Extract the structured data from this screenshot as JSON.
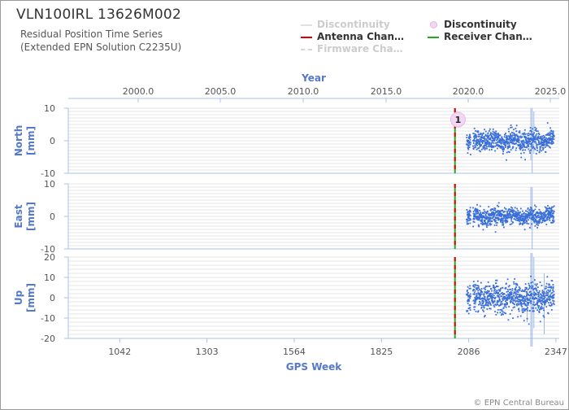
{
  "header": {
    "title": "VLN100IRL 13626M002",
    "subtitle_line1": "Residual Position Time Series",
    "subtitle_line2": "(Extended EPN Solution C2235U)"
  },
  "legend": [
    {
      "label": "Discontinuity",
      "style": "dim-line",
      "color": "#d8d8d8"
    },
    {
      "label": "Discontinuity",
      "style": "bubble",
      "color": "#f0d0f0"
    },
    {
      "label": "Antenna Chan…",
      "style": "line",
      "color": "#dd0000"
    },
    {
      "label": "Receiver Chan…",
      "style": "line",
      "color": "#22aa22"
    },
    {
      "label": "Firmware Cha…",
      "style": "dashed-dim",
      "color": "#cccccc"
    }
  ],
  "footer": "© EPN Central Bureau",
  "colors": {
    "axis_title": "#5577cc",
    "points": "#3a6fd8",
    "axis_line": "#a9c2ea",
    "grid": "#e6e6e6",
    "antenna": "#dd0000",
    "receiver": "#22aa22",
    "discontinuity_bubble": "#f2d6f2"
  },
  "chart_data": {
    "type": "scatter",
    "x_axis_bottom": {
      "title": "GPS Week",
      "tick_labels": [
        "1042",
        "1303",
        "1564",
        "1825",
        "2086",
        "2347"
      ],
      "ticks": [
        1042,
        1303,
        1564,
        1825,
        2086,
        2347
      ],
      "range": [
        888,
        2357
      ]
    },
    "x_axis_top": {
      "title": "Year",
      "tick_labels": [
        "2000.0",
        "2005.0",
        "2010.0",
        "2015.0",
        "2020.0",
        "2025.0"
      ]
    },
    "panels": [
      {
        "name": "north",
        "ylabel": "North",
        "unit": "[mm]",
        "ylim": [
          -10,
          10
        ],
        "ticks": [
          10,
          0,
          -10
        ],
        "tick_labels": [
          "10",
          "0",
          "-10"
        ],
        "noise_sd": 1.6,
        "spikes": [
          {
            "week": 2272,
            "low": -6,
            "high": 10
          },
          {
            "week": 2276,
            "low": -10,
            "high": 10
          },
          {
            "week": 2281,
            "low": -4,
            "high": 9
          }
        ]
      },
      {
        "name": "east",
        "ylabel": "East",
        "unit": "[mm]",
        "ylim": [
          -10,
          10
        ],
        "ticks": [
          10,
          0,
          -10
        ],
        "tick_labels": [
          "10",
          "0",
          "-10"
        ],
        "noise_sd": 1.3,
        "spikes": [
          {
            "week": 2272,
            "low": -4,
            "high": 9
          },
          {
            "week": 2276,
            "low": -10,
            "high": 9
          }
        ]
      },
      {
        "name": "up",
        "ylabel": "Up",
        "unit": "[mm]",
        "ylim": [
          -20,
          20
        ],
        "ticks": [
          20,
          10,
          0,
          -10,
          -20
        ],
        "tick_labels": [
          "20",
          "10",
          "0",
          "-10",
          "-20"
        ],
        "noise_sd": 3.6,
        "spikes": [
          {
            "week": 2261,
            "low": -12,
            "high": 5
          },
          {
            "week": 2272,
            "low": -35,
            "high": 22
          },
          {
            "week": 2276,
            "low": -40,
            "high": 22
          },
          {
            "week": 2281,
            "low": -15,
            "high": 20
          },
          {
            "week": 2312,
            "low": -18,
            "high": 12
          }
        ]
      }
    ],
    "data_start_week": 2080,
    "data_end_week": 2342,
    "gap": {
      "start_week": 2092,
      "end_week": 2099
    },
    "antenna_change_week": 2045,
    "receiver_change_week": 2045,
    "discontinuity": {
      "week": 2054,
      "label": "1"
    }
  }
}
